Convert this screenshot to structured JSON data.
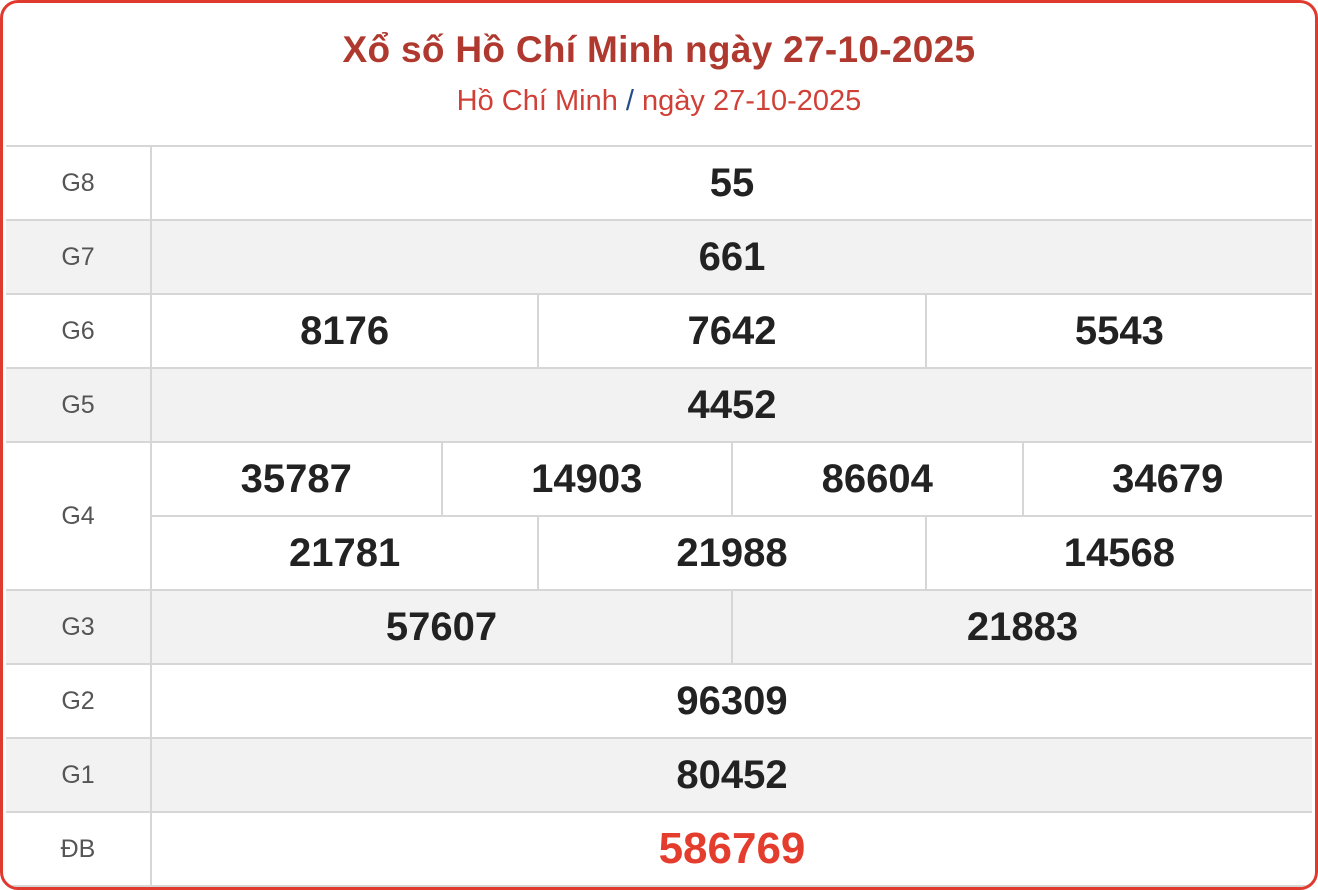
{
  "header": {
    "title": "Xổ số Hồ Chí Minh ngày 27-10-2025",
    "breadcrumb_province": "Hồ Chí Minh",
    "breadcrumb_separator": "/",
    "breadcrumb_date": "ngày 27-10-2025"
  },
  "colors": {
    "accent": "#e03a2f",
    "title": "#b0392f",
    "special_prize": "#e43d2e"
  },
  "prizes": [
    {
      "label": "G8",
      "rows": [
        [
          "55"
        ]
      ]
    },
    {
      "label": "G7",
      "rows": [
        [
          "661"
        ]
      ]
    },
    {
      "label": "G6",
      "rows": [
        [
          "8176",
          "7642",
          "5543"
        ]
      ]
    },
    {
      "label": "G5",
      "rows": [
        [
          "4452"
        ]
      ]
    },
    {
      "label": "G4",
      "rows": [
        [
          "35787",
          "14903",
          "86604",
          "34679"
        ],
        [
          "21781",
          "21988",
          "14568"
        ]
      ]
    },
    {
      "label": "G3",
      "rows": [
        [
          "57607",
          "21883"
        ]
      ]
    },
    {
      "label": "G2",
      "rows": [
        [
          "96309"
        ]
      ]
    },
    {
      "label": "G1",
      "rows": [
        [
          "80452"
        ]
      ]
    },
    {
      "label": "ĐB",
      "rows": [
        [
          "586769"
        ]
      ]
    }
  ]
}
